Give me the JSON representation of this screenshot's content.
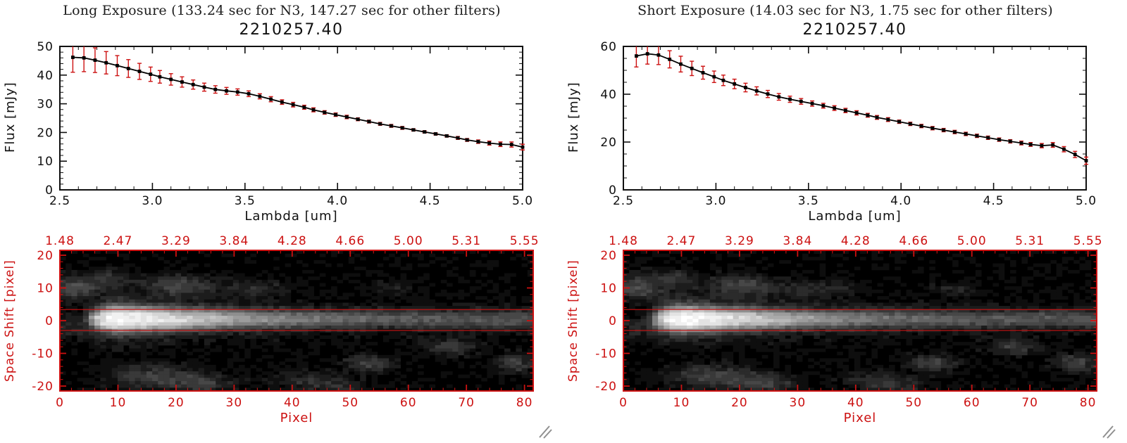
{
  "colors": {
    "accent_red": "#cc1111",
    "foreground": "#101010",
    "background": "#ffffff",
    "image_colormap": "grayscale"
  },
  "panels": [
    {
      "header": "Long Exposure (133.24 sec for N3, 147.27 sec for other filters)",
      "spectrum": {
        "title": "2210257.40",
        "xlabel": "Lambda [um]",
        "ylabel": "Flux [mJy]"
      },
      "image": {
        "xlabel": "Pixel",
        "ylabel": "Space Shift [pixel]"
      }
    },
    {
      "header": "Short Exposure (14.03 sec for N3, 1.75 sec for other filters)",
      "spectrum": {
        "title": "2210257.40",
        "xlabel": "Lambda [um]",
        "ylabel": "Flux [mJy]"
      },
      "image": {
        "xlabel": "Pixel",
        "ylabel": "Space Shift [pixel]"
      }
    }
  ],
  "chart_data": [
    {
      "type": "line",
      "panel": "long-exposure",
      "title": "2210257.40",
      "xlabel": "Lambda [um]",
      "ylabel": "Flux [mJy]",
      "xlim": [
        2.5,
        5.0
      ],
      "ylim": [
        0,
        50
      ],
      "xmajor": 0.5,
      "xminor": 0.1,
      "ymajor": 10,
      "yminor": 2,
      "xticks": [
        "2.5",
        "3.0",
        "3.5",
        "4.0",
        "4.5",
        "5.0"
      ],
      "yticks": [
        "0",
        "10",
        "20",
        "30",
        "40",
        "50"
      ],
      "x": [
        2.57,
        2.63,
        2.69,
        2.75,
        2.81,
        2.87,
        2.93,
        2.99,
        3.04,
        3.1,
        3.16,
        3.22,
        3.28,
        3.34,
        3.4,
        3.46,
        3.52,
        3.58,
        3.64,
        3.7,
        3.76,
        3.82,
        3.87,
        3.93,
        3.99,
        4.05,
        4.11,
        4.17,
        4.23,
        4.29,
        4.35,
        4.41,
        4.47,
        4.53,
        4.59,
        4.65,
        4.7,
        4.76,
        4.82,
        4.88,
        4.94,
        5.0
      ],
      "flux": [
        46.2,
        46.0,
        45.2,
        44.3,
        43.3,
        42.3,
        41.3,
        40.3,
        39.4,
        38.5,
        37.6,
        36.7,
        35.8,
        35.0,
        34.5,
        34.1,
        33.5,
        32.6,
        31.6,
        30.6,
        29.7,
        28.8,
        27.9,
        27.0,
        26.2,
        25.4,
        24.6,
        23.8,
        23.0,
        22.3,
        21.6,
        20.9,
        20.2,
        19.5,
        18.8,
        18.1,
        17.4,
        16.8,
        16.3,
        15.9,
        15.8,
        14.9
      ],
      "flux_err": [
        5.2,
        4.8,
        4.3,
        3.9,
        3.5,
        3.1,
        2.8,
        2.5,
        2.2,
        2.0,
        1.8,
        1.6,
        1.4,
        1.3,
        1.2,
        1.1,
        1.0,
        0.9,
        0.9,
        0.8,
        0.8,
        0.7,
        0.7,
        0.6,
        0.6,
        0.6,
        0.5,
        0.5,
        0.5,
        0.5,
        0.5,
        0.4,
        0.4,
        0.4,
        0.4,
        0.5,
        0.5,
        0.6,
        0.7,
        0.8,
        0.9,
        1.0
      ],
      "line_color": "#000000",
      "marker": "filled-square",
      "error_bar_color": "#cc1111"
    },
    {
      "type": "line",
      "panel": "short-exposure",
      "title": "2210257.40",
      "xlabel": "Lambda [um]",
      "ylabel": "Flux [mJy]",
      "xlim": [
        2.5,
        5.0
      ],
      "ylim": [
        0,
        60
      ],
      "xmajor": 0.5,
      "xminor": 0.1,
      "ymajor": 20,
      "yminor": 5,
      "xticks": [
        "2.5",
        "3.0",
        "3.5",
        "4.0",
        "4.5",
        "5.0"
      ],
      "yticks": [
        "0",
        "20",
        "40",
        "60"
      ],
      "x": [
        2.57,
        2.63,
        2.69,
        2.75,
        2.81,
        2.87,
        2.93,
        2.99,
        3.04,
        3.1,
        3.16,
        3.22,
        3.28,
        3.34,
        3.4,
        3.46,
        3.52,
        3.58,
        3.64,
        3.7,
        3.76,
        3.82,
        3.87,
        3.93,
        3.99,
        4.05,
        4.11,
        4.17,
        4.23,
        4.29,
        4.35,
        4.41,
        4.47,
        4.53,
        4.59,
        4.65,
        4.7,
        4.76,
        4.82,
        4.88,
        4.94,
        5.0
      ],
      "flux": [
        56.0,
        56.9,
        56.4,
        54.6,
        52.6,
        50.8,
        49.0,
        47.3,
        45.8,
        44.3,
        42.8,
        41.4,
        40.1,
        38.9,
        37.9,
        37.0,
        36.1,
        35.2,
        34.2,
        33.2,
        32.2,
        31.2,
        30.3,
        29.4,
        28.5,
        27.6,
        26.7,
        25.8,
        25.0,
        24.2,
        23.4,
        22.6,
        21.8,
        21.0,
        20.3,
        19.6,
        19.0,
        18.5,
        18.8,
        17.0,
        14.8,
        12.2
      ],
      "flux_err": [
        4.6,
        4.3,
        4.0,
        3.6,
        3.3,
        3.0,
        2.7,
        2.4,
        2.2,
        2.0,
        1.8,
        1.7,
        1.5,
        1.4,
        1.3,
        1.2,
        1.1,
        1.0,
        1.0,
        0.9,
        0.9,
        0.8,
        0.8,
        0.8,
        0.7,
        0.7,
        0.7,
        0.7,
        0.7,
        0.7,
        0.7,
        0.7,
        0.7,
        0.7,
        0.7,
        0.8,
        0.8,
        0.9,
        1.0,
        1.1,
        1.3,
        1.5
      ],
      "line_color": "#000000",
      "marker": "filled-square",
      "error_bar_color": "#cc1111"
    },
    {
      "type": "heatmap",
      "panel": "long-exposure",
      "xlabel": "Pixel",
      "ylabel": "Space Shift [pixel]",
      "xlim": [
        0,
        81.5
      ],
      "ylim": [
        -21.5,
        21.5
      ],
      "xticks": [
        "0",
        "10",
        "20",
        "30",
        "40",
        "50",
        "60",
        "70",
        "80"
      ],
      "yticks": [
        "20",
        "10",
        "0",
        "-10",
        "-20"
      ],
      "top_tick_labels": [
        "1.48",
        "2.47",
        "3.29",
        "3.84",
        "4.28",
        "4.66",
        "5.00",
        "5.31",
        "5.55"
      ],
      "extract_lines": [
        3.4,
        -3.0
      ],
      "seed": 7,
      "colormap": "grayscale",
      "model": {
        "nx": 82,
        "ny": 43,
        "vmax": 21,
        "gain": 0.55,
        "noise": 0.11,
        "streak": {
          "amp": 6,
          "vc": 0.5,
          "sv": 1.8,
          "wing": 0.16,
          "wsv": 4.2,
          "rise0": 3,
          "rise1": 10,
          "peak": 10,
          "floor": 0.1,
          "decay": 12
        },
        "blobs": [
          [
            2,
            10,
            3,
            2.5,
            0.6
          ],
          [
            8,
            13,
            3,
            2,
            0.35
          ],
          [
            20,
            11,
            4,
            2.2,
            0.55
          ],
          [
            33,
            10,
            5,
            1.8,
            0.28
          ],
          [
            2,
            -2,
            2.5,
            2.5,
            0.3
          ],
          [
            15,
            -17,
            5,
            2.5,
            0.5
          ],
          [
            24,
            -19,
            4,
            2,
            0.45
          ],
          [
            42,
            -18,
            4,
            2,
            0.25
          ],
          [
            53,
            -13,
            3,
            1.8,
            0.5
          ],
          [
            67,
            -8,
            3,
            1.8,
            0.45
          ],
          [
            78,
            -13,
            2.5,
            2,
            0.5
          ],
          [
            57,
            10,
            3,
            1.5,
            0.22
          ],
          [
            47,
            -20,
            4,
            2,
            0.28
          ]
        ]
      }
    },
    {
      "type": "heatmap",
      "panel": "short-exposure",
      "xlabel": "Pixel",
      "ylabel": "Space Shift [pixel]",
      "xlim": [
        0,
        81.5
      ],
      "ylim": [
        -21.5,
        21.5
      ],
      "xticks": [
        "0",
        "10",
        "20",
        "30",
        "40",
        "50",
        "60",
        "70",
        "80"
      ],
      "yticks": [
        "20",
        "10",
        "0",
        "-10",
        "-20"
      ],
      "top_tick_labels": [
        "1.48",
        "2.47",
        "3.29",
        "3.84",
        "4.28",
        "4.66",
        "5.00",
        "5.31",
        "5.55"
      ],
      "extract_lines": [
        3.4,
        -3.0
      ],
      "seed": 13,
      "colormap": "grayscale",
      "model": {
        "nx": 82,
        "ny": 43,
        "vmax": 21,
        "gain": 0.55,
        "noise": 0.11,
        "streak": {
          "amp": 6,
          "vc": 0.5,
          "sv": 1.8,
          "wing": 0.16,
          "wsv": 4.2,
          "rise0": 3,
          "rise1": 10,
          "peak": 10,
          "floor": 0.1,
          "decay": 12
        },
        "blobs": [
          [
            2,
            10,
            3,
            2.5,
            0.6
          ],
          [
            8,
            13,
            3,
            2,
            0.35
          ],
          [
            20,
            11,
            4,
            2.2,
            0.55
          ],
          [
            33,
            10,
            5,
            1.8,
            0.28
          ],
          [
            2,
            -2,
            2.5,
            2.5,
            0.3
          ],
          [
            15,
            -17,
            5,
            2.5,
            0.5
          ],
          [
            24,
            -19,
            4,
            2,
            0.45
          ],
          [
            42,
            -18,
            4,
            2,
            0.25
          ],
          [
            53,
            -13,
            3,
            1.8,
            0.5
          ],
          [
            67,
            -8,
            3,
            1.8,
            0.45
          ],
          [
            78,
            -13,
            2.5,
            2,
            0.5
          ],
          [
            57,
            10,
            3,
            1.5,
            0.22
          ],
          [
            47,
            -20,
            4,
            2,
            0.28
          ]
        ]
      }
    }
  ]
}
